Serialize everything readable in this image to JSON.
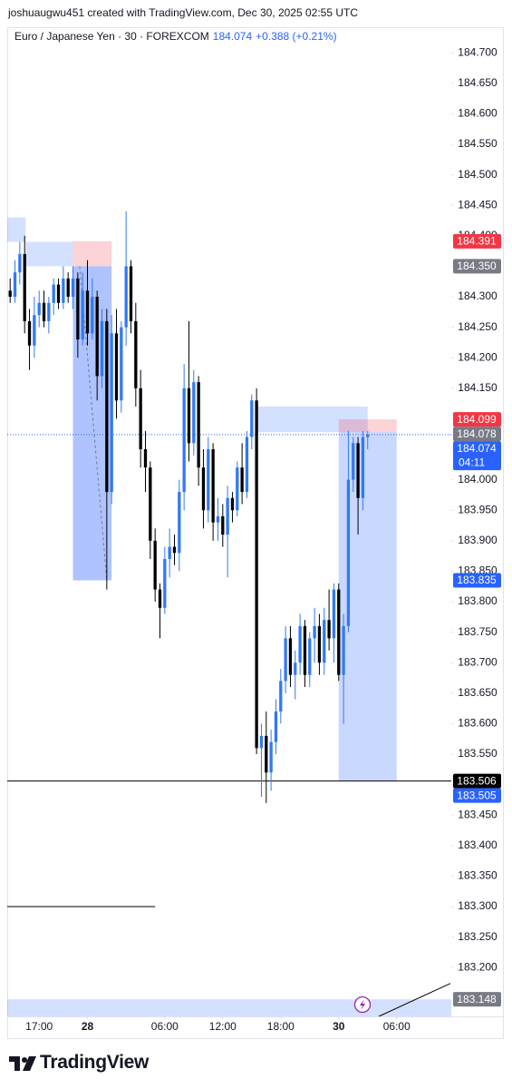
{
  "header": {
    "credit": "joshuaugwu451 created with TradingView.com, Dec 30, 2025 02:55 UTC"
  },
  "footer": {
    "brand": "TradingView"
  },
  "chart_data": {
    "type": "candlestick",
    "symbol": "Euro / Japanese Yen · 30 · FOREXCOM",
    "last": "184.074",
    "change": "+0.388 (+0.21%)",
    "up_color": "#3179f5",
    "down_color": "#000000",
    "xlim": [
      -0.6,
      91.3
    ],
    "xticks": [
      {
        "value": 6,
        "label": "17:00"
      },
      {
        "value": 16,
        "label": "28",
        "bold": true
      },
      {
        "value": 32,
        "label": "06:00"
      },
      {
        "value": 44,
        "label": "12:00"
      },
      {
        "value": 56,
        "label": "18:00"
      },
      {
        "value": 68,
        "label": "30",
        "bold": true
      },
      {
        "value": 80,
        "label": "06:00"
      }
    ],
    "ylim": [
      183.12,
      184.742
    ],
    "yticks": [
      {
        "value": 183.2,
        "label": "183.200"
      },
      {
        "value": 183.25,
        "label": "183.250"
      },
      {
        "value": 183.3,
        "label": "183.300"
      },
      {
        "value": 183.35,
        "label": "183.350"
      },
      {
        "value": 183.4,
        "label": "183.400"
      },
      {
        "value": 183.45,
        "label": "183.450"
      },
      {
        "value": 183.5,
        "label": "183.500"
      },
      {
        "value": 183.55,
        "label": "183.550"
      },
      {
        "value": 183.6,
        "label": "183.600"
      },
      {
        "value": 183.65,
        "label": "183.650"
      },
      {
        "value": 183.7,
        "label": "183.700"
      },
      {
        "value": 183.75,
        "label": "183.750"
      },
      {
        "value": 183.8,
        "label": "183.800"
      },
      {
        "value": 183.85,
        "label": "183.850"
      },
      {
        "value": 183.9,
        "label": "183.900"
      },
      {
        "value": 183.95,
        "label": "183.950"
      },
      {
        "value": 184.0,
        "label": "184.000"
      },
      {
        "value": 184.05,
        "label": "184.050"
      },
      {
        "value": 184.1,
        "label": "184.100"
      },
      {
        "value": 184.15,
        "label": "184.150"
      },
      {
        "value": 184.2,
        "label": "184.200"
      },
      {
        "value": 184.25,
        "label": "184.250"
      },
      {
        "value": 184.3,
        "label": "184.300"
      },
      {
        "value": 184.35,
        "label": "184.350"
      },
      {
        "value": 184.4,
        "label": "184.400"
      },
      {
        "value": 184.45,
        "label": "184.450"
      },
      {
        "value": 184.5,
        "label": "184.500"
      },
      {
        "value": 184.55,
        "label": "184.550"
      },
      {
        "value": 184.6,
        "label": "184.600"
      },
      {
        "value": 184.65,
        "label": "184.650"
      },
      {
        "value": 184.7,
        "label": "184.700"
      }
    ],
    "open": [
      184.31,
      184.3,
      184.34,
      184.37,
      184.26,
      184.22,
      184.27,
      184.29,
      184.26,
      184.29,
      184.32,
      184.29,
      184.33,
      184.3,
      184.33,
      184.23,
      184.31,
      184.24,
      184.3,
      184.17,
      184.26,
      183.98,
      184.24,
      184.13,
      184.25,
      184.35,
      184.26,
      184.15,
      184.05,
      184.02,
      183.9,
      183.82,
      183.79,
      183.87,
      183.89,
      183.88,
      183.98,
      184.15,
      184.06,
      184.16,
      184.02,
      183.95,
      184.05,
      183.93,
      183.94,
      183.91,
      183.97,
      183.95,
      184.02,
      183.98,
      184.07,
      184.13,
      183.56,
      183.58,
      183.52,
      183.57,
      183.62,
      183.67,
      183.74,
      183.68,
      183.7,
      183.76,
      183.68,
      183.74,
      183.76,
      183.7,
      183.77,
      183.74,
      183.82,
      183.68,
      183.76,
      184.0,
      184.06,
      183.97,
      184.07
    ],
    "high": [
      184.33,
      184.36,
      184.39,
      184.4,
      184.28,
      184.3,
      184.31,
      184.31,
      184.3,
      184.33,
      184.33,
      184.35,
      184.34,
      184.35,
      184.34,
      184.34,
      184.36,
      184.33,
      184.31,
      184.28,
      184.28,
      184.27,
      184.28,
      184.26,
      184.44,
      184.36,
      184.29,
      184.18,
      184.08,
      184.03,
      183.92,
      183.83,
      183.89,
      183.92,
      183.91,
      184.0,
      184.19,
      184.26,
      184.18,
      184.17,
      184.05,
      184.07,
      184.06,
      183.97,
      183.96,
      183.99,
      183.98,
      184.03,
      184.06,
      184.08,
      184.14,
      184.15,
      183.6,
      183.62,
      183.59,
      183.64,
      183.69,
      183.76,
      183.76,
      183.72,
      183.78,
      183.77,
      183.75,
      183.79,
      183.78,
      183.79,
      183.82,
      183.83,
      183.83,
      183.78,
      184.08,
      184.07,
      184.07,
      184.08,
      184.08
    ],
    "low": [
      184.29,
      184.29,
      184.32,
      184.24,
      184.18,
      184.2,
      184.25,
      184.25,
      184.24,
      184.27,
      184.28,
      184.28,
      184.29,
      184.28,
      184.2,
      184.22,
      184.22,
      184.23,
      184.13,
      184.15,
      183.82,
      183.96,
      184.1,
      184.11,
      184.22,
      184.24,
      184.12,
      184.02,
      183.98,
      183.87,
      183.8,
      183.74,
      183.78,
      183.84,
      183.86,
      183.85,
      183.95,
      184.03,
      184.04,
      183.99,
      183.92,
      183.93,
      183.9,
      183.9,
      183.89,
      183.84,
      183.93,
      183.94,
      183.96,
      183.97,
      184.05,
      183.55,
      183.48,
      183.47,
      183.49,
      183.55,
      183.6,
      183.65,
      183.66,
      183.64,
      183.68,
      183.66,
      183.66,
      183.7,
      183.68,
      183.68,
      183.72,
      183.7,
      183.67,
      183.6,
      183.75,
      183.98,
      183.91,
      183.95,
      184.05
    ],
    "close": [
      184.3,
      184.34,
      184.37,
      184.26,
      184.22,
      184.27,
      184.29,
      184.26,
      184.29,
      184.32,
      184.29,
      184.33,
      184.3,
      184.33,
      184.23,
      184.31,
      184.24,
      184.3,
      184.17,
      184.26,
      183.98,
      184.24,
      184.13,
      184.25,
      184.35,
      184.26,
      184.15,
      184.05,
      184.02,
      183.9,
      183.82,
      183.79,
      183.87,
      183.89,
      183.88,
      183.98,
      184.15,
      184.06,
      184.16,
      184.02,
      183.95,
      184.05,
      183.93,
      183.94,
      183.91,
      183.97,
      183.95,
      184.02,
      183.98,
      184.07,
      184.13,
      183.56,
      183.58,
      183.52,
      183.57,
      183.62,
      183.67,
      183.74,
      183.68,
      183.7,
      183.76,
      183.68,
      183.74,
      183.76,
      183.7,
      183.77,
      183.74,
      183.82,
      183.68,
      183.76,
      184.0,
      184.06,
      183.97,
      184.07,
      184.074
    ],
    "zones": [
      {
        "start": -0.6,
        "end": 3.2,
        "top": 184.43,
        "bottom": 184.39,
        "color": "rgba(41,98,255,0.2)"
      },
      {
        "start": 3.2,
        "end": 13,
        "top": 184.39,
        "bottom": 184.35,
        "color": "rgba(41,98,255,0.2)"
      },
      {
        "start": 13,
        "end": 21,
        "top": 184.391,
        "bottom": 184.35,
        "color": "rgba(242,54,69,0.22)"
      },
      {
        "start": 13,
        "end": 21,
        "top": 184.35,
        "bottom": 183.835,
        "color": "rgba(41,98,255,0.38)"
      },
      {
        "start": 51,
        "end": 74,
        "top": 184.12,
        "bottom": 184.078,
        "color": "rgba(41,98,255,0.2)"
      },
      {
        "start": 68,
        "end": 80,
        "top": 184.099,
        "bottom": 184.078,
        "color": "rgba(242,54,69,0.22)"
      },
      {
        "start": 68,
        "end": 80,
        "top": 184.078,
        "bottom": 183.506,
        "color": "rgba(41,98,255,0.25)"
      },
      {
        "start": -0.6,
        "end": 91.3,
        "top": 183.148,
        "bottom": 183.12,
        "color": "rgba(41,98,255,0.2)"
      }
    ],
    "lines": [
      {
        "x1": -0.6,
        "y1": 183.506,
        "x2": 91.3,
        "y2": 183.506,
        "color": "#000000",
        "dash": "none"
      },
      {
        "x1": -0.6,
        "y1": 183.3,
        "x2": 30,
        "y2": 183.3,
        "color": "#000000",
        "dash": "none"
      },
      {
        "x1": 76.3,
        "y1": 183.12,
        "x2": 91.1,
        "y2": 183.174,
        "color": "#000000",
        "dash": "none"
      },
      {
        "x1": 14.4,
        "y1": 184.35,
        "x2": 20,
        "y2": 183.835,
        "color": "#787b86",
        "dash": "3 3"
      }
    ],
    "price_labels": [
      {
        "value": 184.391,
        "label": "184.391",
        "bg": "#f23645"
      },
      {
        "value": 184.35,
        "label": "184.350",
        "bg": "#787b86"
      },
      {
        "value": 184.099,
        "label": "184.099",
        "bg": "#f23645"
      },
      {
        "value": 184.078,
        "label": "184.078",
        "bg": "#787b86"
      },
      {
        "value": 184.074,
        "label": "184.074",
        "bg": "#2962ff",
        "countdown": "04:11"
      },
      {
        "value": 183.835,
        "label": "183.835",
        "bg": "#2962ff"
      },
      {
        "value": 183.506,
        "label": "183.506",
        "bg": "#000000"
      },
      {
        "value": 183.505,
        "label": "183.505",
        "bg": "#2962ff"
      },
      {
        "value": 183.148,
        "label": "183.148",
        "bg": "#787b86"
      }
    ]
  }
}
